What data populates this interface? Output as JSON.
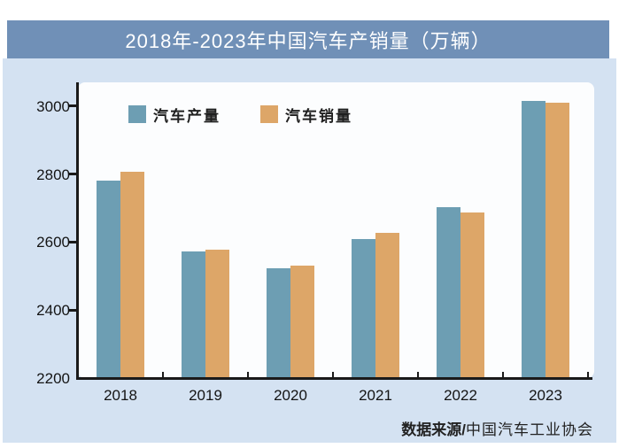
{
  "title": "2018年-2023年中国汽车产销量（万辆）",
  "source": {
    "prefix": "数据来源/",
    "org": "中国汽车工业协会"
  },
  "colors": {
    "title_bar": "#7090b7",
    "title_text": "#ffffff",
    "card_bg": "#d4e2f2",
    "panel_bg": "#fcfdfe",
    "production": "#6d9eb3",
    "sales": "#dda668",
    "axis": "#1a1a1a",
    "label_text": "#141414"
  },
  "chart_data": {
    "type": "bar",
    "title": "2018年-2023年中国汽车产销量（万辆）",
    "unit": "万辆",
    "categories": [
      "2018",
      "2019",
      "2020",
      "2021",
      "2022",
      "2023"
    ],
    "series": [
      {
        "name": "汽车产量",
        "color": "#6d9eb3",
        "values": [
          2780.9,
          2572.1,
          2522.5,
          2608.2,
          2702.1,
          3016.1
        ]
      },
      {
        "name": "汽车销量",
        "color": "#dda668",
        "values": [
          2808.1,
          2576.9,
          2531.1,
          2627.5,
          2686.4,
          3009.4
        ]
      }
    ],
    "ylim": [
      2200,
      3070
    ],
    "yticks": [
      2200,
      2400,
      2600,
      2800,
      3000
    ],
    "grid": false,
    "legend_position": "top-left-inside"
  }
}
